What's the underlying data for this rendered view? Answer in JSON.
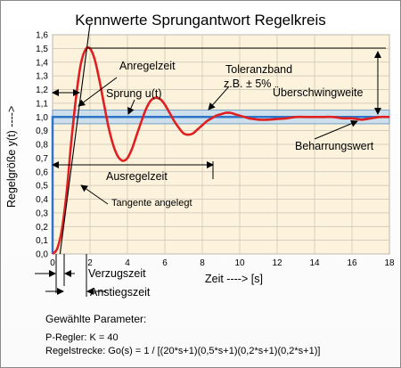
{
  "chart_data": {
    "type": "line",
    "title": "Kennwerte Sprungantwort  Regelkreis",
    "xlabel": "Zeit  ---->  [s]",
    "ylabel": "Regelgröße y(t)   ---->",
    "xlim": [
      0,
      18
    ],
    "ylim": [
      0,
      1.6
    ],
    "xticks": [
      0,
      2,
      4,
      6,
      8,
      10,
      12,
      14,
      16,
      18
    ],
    "yticks": [
      "0,0",
      "0,1",
      "0,2",
      "0,3",
      "0,4",
      "0,5",
      "0,6",
      "0,7",
      "0,8",
      "0,9",
      "1,0",
      "1,1",
      "1,2",
      "1,3",
      "1,4",
      "1,5",
      "1,6"
    ],
    "grid": true,
    "tolerance_band": [
      0.95,
      1.05
    ],
    "series": [
      {
        "name": "Sprung u(t)",
        "color": "#2e75c9",
        "x": [
          0,
          0,
          18
        ],
        "y": [
          0,
          1.0,
          1.0
        ]
      },
      {
        "color": "#e02020",
        "x": [
          0,
          0.25,
          0.5,
          0.75,
          1.0,
          1.25,
          1.5,
          1.75,
          2.0,
          2.25,
          2.5,
          2.75,
          3.0,
          3.25,
          3.5,
          3.75,
          4.0,
          4.25,
          4.5,
          4.75,
          5.0,
          5.25,
          5.5,
          5.75,
          6.0,
          6.25,
          6.5,
          6.75,
          7.0,
          7.25,
          7.5,
          7.75,
          8.0,
          8.25,
          8.5,
          8.75,
          9.0,
          9.25,
          9.5,
          9.75,
          10.0,
          10.25,
          10.5,
          10.75,
          11.0,
          11.5,
          12.0,
          12.5,
          13.0,
          13.5,
          14.0,
          14.5,
          15.0,
          15.5,
          16.0,
          16.5,
          17.0,
          17.5,
          18.0
        ],
        "y": [
          0.0,
          0.04,
          0.18,
          0.45,
          0.82,
          1.14,
          1.38,
          1.49,
          1.5,
          1.42,
          1.27,
          1.09,
          0.92,
          0.79,
          0.71,
          0.68,
          0.7,
          0.77,
          0.87,
          0.97,
          1.06,
          1.12,
          1.14,
          1.13,
          1.09,
          1.03,
          0.97,
          0.92,
          0.88,
          0.87,
          0.88,
          0.91,
          0.94,
          0.97,
          0.99,
          1.01,
          1.02,
          1.03,
          1.03,
          1.02,
          1.01,
          1.0,
          0.99,
          0.985,
          0.98,
          0.98,
          0.985,
          0.99,
          1.0,
          1.0,
          1.0,
          1.0,
          1.0,
          0.99,
          0.99,
          0.98,
          0.99,
          1.0,
          1.0
        ]
      }
    ],
    "tangent": {
      "x": [
        0.4,
        2.0
      ],
      "y": [
        0.0,
        1.6
      ]
    },
    "annotations": [
      "Anregelzeit",
      "Toleranzband",
      "z.B.  ± 5%",
      "Sprung u(t)",
      "Überschwingweite",
      "Ausregelzeit",
      "Beharrungswert",
      "Tangente angelegt",
      "Verzugszeit",
      "Anstiegszeit"
    ]
  },
  "parameters": {
    "heading": "Gewählte Parameter:",
    "regler": "P-Regler: K = 40",
    "strecke": "Regelstrecke: Go(s) = 1 / [(20*s+1)(0,5*s+1)(0,2*s+1)(0,2*s+1)]"
  },
  "colors": {
    "plot_background": "#fdf3dc",
    "band_fill": "#bcd8ef",
    "response": "#e02020",
    "step": "#2e75c9"
  }
}
